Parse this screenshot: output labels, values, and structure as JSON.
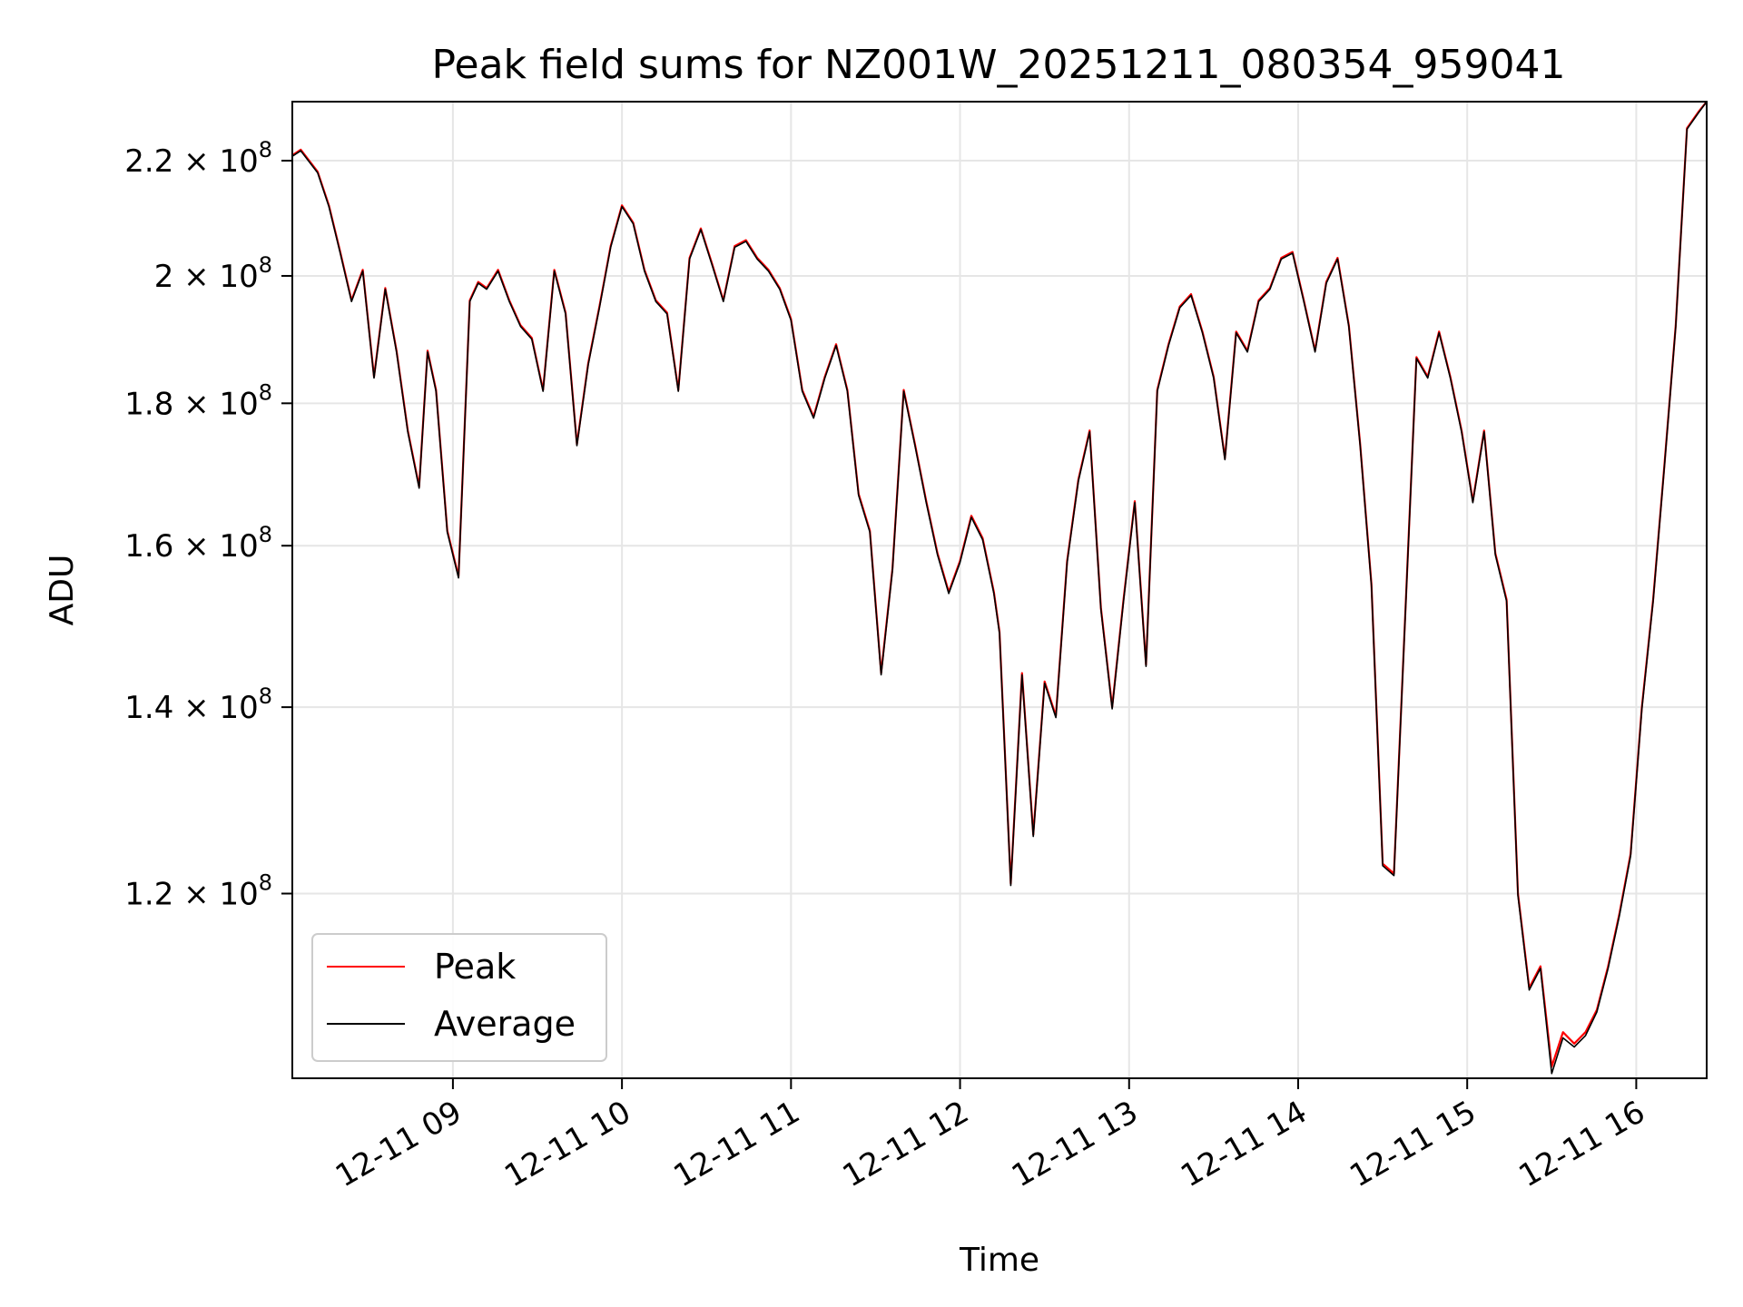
{
  "chart_data": {
    "type": "line",
    "title": "Peak field sums for NZ001W_20251211_080354_959041",
    "xlabel": "Time",
    "ylabel": "ADU",
    "yscale": "log",
    "grid": true,
    "legend_position": "lower-left",
    "xlim": [
      "12-11 08:03",
      "12-11 16:25"
    ],
    "ylim": [
      103000000,
      231000000
    ],
    "x_ticks": [
      "12-11 09",
      "12-11 10",
      "12-11 11",
      "12-11 12",
      "12-11 13",
      "12-11 14",
      "12-11 15",
      "12-11 16"
    ],
    "y_ticks": [
      {
        "value": 120000000,
        "mantissa": "1.2",
        "exponent": "8"
      },
      {
        "value": 140000000,
        "mantissa": "1.4",
        "exponent": "8"
      },
      {
        "value": 160000000,
        "mantissa": "1.6",
        "exponent": "8"
      },
      {
        "value": 180000000,
        "mantissa": "1.8",
        "exponent": "8"
      },
      {
        "value": 200000000,
        "mantissa": "2",
        "exponent": "8"
      },
      {
        "value": 220000000,
        "mantissa": "2.2",
        "exponent": "8"
      }
    ],
    "series": [
      {
        "name": "Peak",
        "color": "#ff0000",
        "x": [
          "08:03",
          "08:06",
          "08:09",
          "08:12",
          "08:16",
          "08:20",
          "08:24",
          "08:28",
          "08:32",
          "08:36",
          "08:40",
          "08:44",
          "08:48",
          "08:51",
          "08:54",
          "08:58",
          "09:02",
          "09:06",
          "09:09",
          "09:12",
          "09:16",
          "09:20",
          "09:24",
          "09:28",
          "09:32",
          "09:36",
          "09:40",
          "09:44",
          "09:48",
          "09:52",
          "09:56",
          "10:00",
          "10:04",
          "10:08",
          "10:12",
          "10:16",
          "10:20",
          "10:24",
          "10:28",
          "10:32",
          "10:36",
          "10:40",
          "10:44",
          "10:48",
          "10:52",
          "10:56",
          "11:00",
          "11:04",
          "11:08",
          "11:12",
          "11:16",
          "11:20",
          "11:24",
          "11:28",
          "11:32",
          "11:36",
          "11:40",
          "11:44",
          "11:48",
          "11:52",
          "11:56",
          "12:00",
          "12:04",
          "12:08",
          "12:12",
          "12:14",
          "12:18",
          "12:22",
          "12:26",
          "12:30",
          "12:34",
          "12:38",
          "12:42",
          "12:46",
          "12:50",
          "12:54",
          "12:58",
          "13:02",
          "13:06",
          "13:10",
          "13:14",
          "13:18",
          "13:22",
          "13:26",
          "13:30",
          "13:34",
          "13:38",
          "13:42",
          "13:46",
          "13:50",
          "13:54",
          "13:58",
          "14:02",
          "14:06",
          "14:10",
          "14:14",
          "14:18",
          "14:22",
          "14:26",
          "14:30",
          "14:34",
          "14:38",
          "14:42",
          "14:46",
          "14:50",
          "14:54",
          "14:58",
          "15:02",
          "15:06",
          "15:10",
          "15:14",
          "15:18",
          "15:22",
          "15:26",
          "15:30",
          "15:34",
          "15:38",
          "15:42",
          "15:46",
          "15:50",
          "15:54",
          "15:58",
          "16:02",
          "16:06",
          "16:10",
          "16:14",
          "16:18",
          "16:22",
          "16:25"
        ],
        "y": [
          221000000,
          222000000,
          220000000,
          218000000,
          212000000,
          204000000,
          196000000,
          201000000,
          184000000,
          198000000,
          188000000,
          176000000,
          168000000,
          188000000,
          182000000,
          162000000,
          156000000,
          196000000,
          199000000,
          198000000,
          201000000,
          196000000,
          192000000,
          190000000,
          182000000,
          201000000,
          194000000,
          174000000,
          186000000,
          195000000,
          205000000,
          212000000,
          209000000,
          201000000,
          196000000,
          194000000,
          182000000,
          203000000,
          208000000,
          202000000,
          196000000,
          205000000,
          206000000,
          203000000,
          201000000,
          198000000,
          193000000,
          182000000,
          178000000,
          184000000,
          189000000,
          182000000,
          167000000,
          162000000,
          144000000,
          157000000,
          182000000,
          174000000,
          166000000,
          159000000,
          154000000,
          158000000,
          164000000,
          161000000,
          154000000,
          149000000,
          121000000,
          144000000,
          126000000,
          143000000,
          139000000,
          158000000,
          169000000,
          176000000,
          152000000,
          140000000,
          153000000,
          166000000,
          145000000,
          182000000,
          189000000,
          195000000,
          197000000,
          191000000,
          184000000,
          172000000,
          191000000,
          188000000,
          196000000,
          198000000,
          203000000,
          204000000,
          196000000,
          188000000,
          199000000,
          203000000,
          192000000,
          174000000,
          155000000,
          123000000,
          122000000,
          151000000,
          187000000,
          184000000,
          191000000,
          184000000,
          176000000,
          166000000,
          176000000,
          159000000,
          153000000,
          120000000,
          111000000,
          113000000,
          104000000,
          107000000,
          106000000,
          107000000,
          109000000,
          113000000,
          118000000,
          124000000,
          140000000,
          153000000,
          171000000,
          192000000,
          226000000,
          229000000,
          231000000
        ]
      },
      {
        "name": "Average",
        "color": "#000000",
        "x": [
          "08:03",
          "08:06",
          "08:09",
          "08:12",
          "08:16",
          "08:20",
          "08:24",
          "08:28",
          "08:32",
          "08:36",
          "08:40",
          "08:44",
          "08:48",
          "08:51",
          "08:54",
          "08:58",
          "09:02",
          "09:06",
          "09:09",
          "09:12",
          "09:16",
          "09:20",
          "09:24",
          "09:28",
          "09:32",
          "09:36",
          "09:40",
          "09:44",
          "09:48",
          "09:52",
          "09:56",
          "10:00",
          "10:04",
          "10:08",
          "10:12",
          "10:16",
          "10:20",
          "10:24",
          "10:28",
          "10:32",
          "10:36",
          "10:40",
          "10:44",
          "10:48",
          "10:52",
          "10:56",
          "11:00",
          "11:04",
          "11:08",
          "11:12",
          "11:16",
          "11:20",
          "11:24",
          "11:28",
          "11:32",
          "11:36",
          "11:40",
          "11:44",
          "11:48",
          "11:52",
          "11:56",
          "12:00",
          "12:04",
          "12:08",
          "12:12",
          "12:14",
          "12:18",
          "12:22",
          "12:26",
          "12:30",
          "12:34",
          "12:38",
          "12:42",
          "12:46",
          "12:50",
          "12:54",
          "12:58",
          "13:02",
          "13:06",
          "13:10",
          "13:14",
          "13:18",
          "13:22",
          "13:26",
          "13:30",
          "13:34",
          "13:38",
          "13:42",
          "13:46",
          "13:50",
          "13:54",
          "13:58",
          "14:02",
          "14:06",
          "14:10",
          "14:14",
          "14:18",
          "14:22",
          "14:26",
          "14:30",
          "14:34",
          "14:38",
          "14:42",
          "14:46",
          "14:50",
          "14:54",
          "14:58",
          "15:02",
          "15:06",
          "15:10",
          "15:14",
          "15:18",
          "15:22",
          "15:26",
          "15:30",
          "15:34",
          "15:38",
          "15:42",
          "15:46",
          "15:50",
          "15:54",
          "15:58",
          "16:02",
          "16:06",
          "16:10",
          "16:14",
          "16:18",
          "16:22",
          "16:25"
        ],
        "y": [
          220800000,
          221800000,
          219800000,
          217800000,
          211800000,
          203800000,
          195800000,
          200800000,
          183800000,
          197800000,
          187800000,
          175800000,
          167800000,
          187800000,
          181800000,
          161800000,
          155800000,
          195800000,
          198800000,
          197800000,
          200800000,
          195800000,
          191800000,
          189800000,
          181800000,
          200800000,
          193800000,
          173800000,
          185800000,
          194800000,
          204800000,
          211800000,
          208800000,
          200800000,
          195800000,
          193800000,
          181800000,
          202800000,
          207800000,
          201800000,
          195800000,
          204800000,
          205800000,
          202800000,
          200800000,
          197800000,
          192800000,
          181800000,
          177800000,
          183800000,
          188800000,
          181800000,
          166800000,
          161800000,
          143800000,
          156800000,
          181800000,
          173800000,
          165800000,
          158800000,
          153800000,
          157800000,
          163800000,
          160800000,
          153800000,
          148800000,
          120800000,
          143800000,
          125800000,
          142800000,
          138800000,
          157800000,
          168800000,
          175800000,
          151800000,
          139800000,
          152800000,
          165800000,
          144800000,
          181800000,
          188800000,
          194800000,
          196800000,
          190800000,
          183800000,
          171800000,
          190800000,
          187800000,
          195800000,
          197800000,
          202800000,
          203800000,
          195800000,
          187800000,
          198800000,
          202800000,
          191800000,
          173800000,
          154800000,
          122800000,
          121800000,
          150800000,
          186800000,
          183800000,
          190800000,
          183800000,
          175800000,
          165800000,
          175800000,
          158800000,
          152800000,
          119800000,
          110800000,
          112800000,
          103400000,
          106500000,
          105700000,
          106700000,
          108800000,
          112800000,
          117800000,
          123800000,
          139800000,
          152800000,
          170800000,
          191800000,
          225800000,
          228800000,
          231000000
        ]
      }
    ]
  }
}
